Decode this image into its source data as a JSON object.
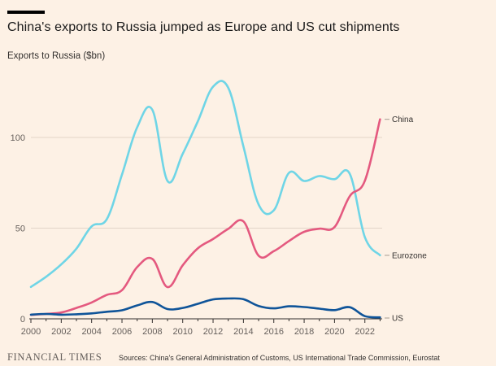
{
  "chart_data": {
    "type": "line",
    "title": "China's exports to Russia jumped as Europe and US cut shipments",
    "ylabel": "Exports to Russia ($bn)",
    "xlim": [
      2000,
      2023
    ],
    "ylim": [
      0,
      135
    ],
    "x_ticks": [
      "2000",
      "2002",
      "2004",
      "2006",
      "2008",
      "2010",
      "2012",
      "2014",
      "2016",
      "2018",
      "2020",
      "2022"
    ],
    "y_ticks": [
      "0",
      "50",
      "100"
    ],
    "grid": "horizontal",
    "series": [
      {
        "name": "China",
        "color": "#e4597f",
        "x": [
          2000,
          2001,
          2002,
          2003,
          2004,
          2005,
          2006,
          2007,
          2008,
          2009,
          2010,
          2011,
          2012,
          2013,
          2014,
          2015,
          2016,
          2017,
          2018,
          2019,
          2020,
          2021,
          2022,
          2023
        ],
        "y": [
          2.2,
          2.7,
          3.5,
          6.0,
          9.0,
          13.2,
          15.8,
          28.5,
          33.0,
          17.5,
          29.5,
          38.9,
          44.0,
          49.6,
          53.7,
          34.8,
          37.3,
          42.9,
          48.0,
          49.7,
          50.6,
          67.6,
          76.1,
          110.0
        ]
      },
      {
        "name": "Eurozone",
        "color": "#6fd5e6",
        "x": [
          2000,
          2001,
          2002,
          2003,
          2004,
          2005,
          2006,
          2007,
          2008,
          2009,
          2010,
          2011,
          2012,
          2013,
          2014,
          2015,
          2016,
          2017,
          2018,
          2019,
          2020,
          2021,
          2022,
          2023
        ],
        "y": [
          17.6,
          23.2,
          30.0,
          38.7,
          51.0,
          55.0,
          79.5,
          105.6,
          115.2,
          76.0,
          91.0,
          109.0,
          128.0,
          127.4,
          95.0,
          63.0,
          59.8,
          80.5,
          76.0,
          78.7,
          77.0,
          80.0,
          45.0,
          35.0
        ]
      },
      {
        "name": "US",
        "color": "#0f5499",
        "x": [
          2000,
          2001,
          2002,
          2003,
          2004,
          2005,
          2006,
          2007,
          2008,
          2009,
          2010,
          2011,
          2012,
          2013,
          2014,
          2015,
          2016,
          2017,
          2018,
          2019,
          2020,
          2021,
          2022,
          2023
        ],
        "y": [
          2.3,
          2.7,
          2.3,
          2.5,
          3.0,
          3.9,
          4.7,
          7.4,
          9.3,
          5.4,
          6.0,
          8.3,
          10.7,
          11.2,
          10.8,
          7.1,
          5.8,
          6.9,
          6.5,
          5.6,
          4.8,
          6.4,
          1.5,
          0.8
        ]
      }
    ]
  },
  "footer": {
    "brand": "FINANCIAL TIMES",
    "source": "Sources: China's General Administration of Customs, US International Trade Commission, Eurostat"
  }
}
